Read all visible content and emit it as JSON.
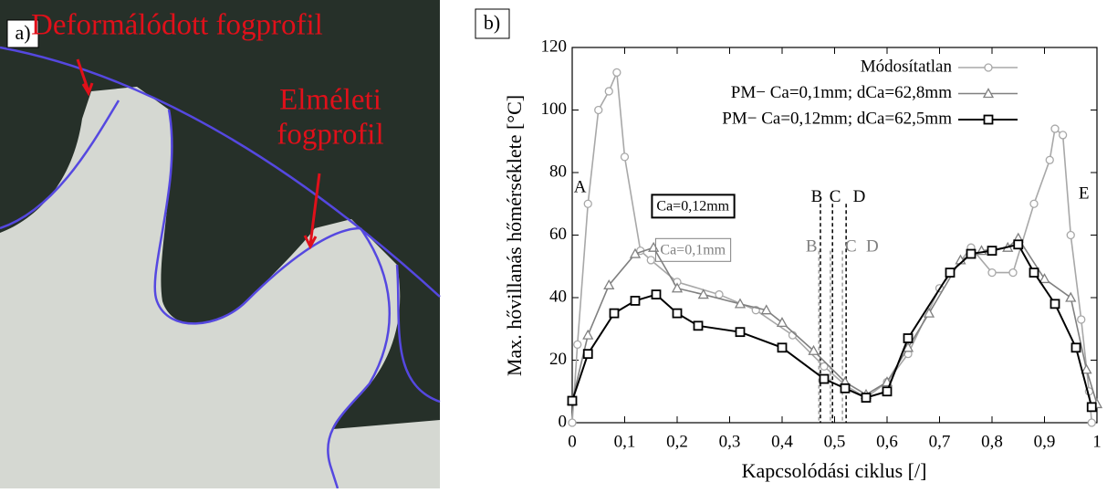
{
  "photo": {
    "panel_label": "a)",
    "deformed_label": "Deformálódott fogprofil",
    "theory_label": [
      "Elméleti",
      "fogprofil"
    ]
  },
  "chart_data": {
    "type": "line",
    "panel_label": "b)",
    "xlabel": "Kapcsolódási ciklus [/]",
    "ylabel": "Max. hővillanás hőmérséklete [°C]",
    "xlim": [
      0,
      1
    ],
    "ylim": [
      0,
      120
    ],
    "xticks": [
      0,
      {
        "value": 0.1,
        "label": "0,1"
      },
      {
        "value": 0.2,
        "label": "0,2"
      },
      {
        "value": 0.3,
        "label": "0,3"
      },
      {
        "value": 0.4,
        "label": "0,4"
      },
      {
        "value": 0.5,
        "label": "0,5"
      },
      {
        "value": 0.6,
        "label": "0,6"
      },
      {
        "value": 0.7,
        "label": "0,7"
      },
      {
        "value": 0.8,
        "label": "0,8"
      },
      {
        "value": 0.9,
        "label": "0,9"
      },
      1
    ],
    "yticks": [
      0,
      20,
      40,
      60,
      80,
      100,
      120
    ],
    "legend": "upper right",
    "series": [
      {
        "name": "Módosítatlan",
        "color": "#a8a8a8",
        "marker": "circle",
        "x": [
          0,
          0.01,
          0.03,
          0.05,
          0.07,
          0.085,
          0.1,
          0.13,
          0.15,
          0.2,
          0.28,
          0.35,
          0.42,
          0.48,
          0.52,
          0.56,
          0.6,
          0.64,
          0.7,
          0.76,
          0.8,
          0.84,
          0.88,
          0.91,
          0.92,
          0.935,
          0.95,
          0.97,
          0.985,
          0.99
        ],
        "values": [
          0,
          25,
          70,
          100,
          106,
          112,
          85,
          55,
          52,
          45,
          41,
          36,
          28,
          18,
          12,
          8,
          13,
          22,
          43,
          56,
          48,
          48,
          70,
          84,
          94,
          92,
          60,
          33,
          10,
          0
        ]
      },
      {
        "name": "PM− Ca=0,1mm; dCa=62,8mm",
        "color": "#808080",
        "marker": "triangle",
        "x": [
          0,
          0.03,
          0.07,
          0.12,
          0.155,
          0.2,
          0.25,
          0.32,
          0.37,
          0.4,
          0.46,
          0.52,
          0.56,
          0.6,
          0.64,
          0.68,
          0.74,
          0.78,
          0.83,
          0.85,
          0.9,
          0.95,
          0.98,
          1
        ],
        "values": [
          7,
          28,
          44,
          54,
          56,
          43,
          41,
          38,
          36,
          32,
          23,
          13,
          9,
          13,
          24,
          35,
          52,
          55,
          56,
          59,
          46,
          40,
          17,
          6
        ]
      },
      {
        "name": "PM− Ca=0,12mm; dCa=62,5mm",
        "color": "#000000",
        "marker": "square",
        "x": [
          0,
          0.03,
          0.08,
          0.12,
          0.16,
          0.2,
          0.24,
          0.32,
          0.4,
          0.48,
          0.52,
          0.56,
          0.6,
          0.64,
          0.72,
          0.76,
          0.8,
          0.85,
          0.88,
          0.92,
          0.96,
          0.99
        ],
        "values": [
          7,
          22,
          35,
          39,
          41,
          35,
          31,
          29,
          24,
          14,
          11,
          8,
          10,
          27,
          48,
          54,
          55,
          57,
          48,
          38,
          24,
          5
        ]
      }
    ],
    "vlines": [
      {
        "x": 0.473,
        "color": "#000000",
        "top": 70
      },
      {
        "x": 0.496,
        "color": "#000000",
        "top": 70
      },
      {
        "x": 0.522,
        "color": "#000000",
        "top": 70
      },
      {
        "x": 0.47,
        "color": "#a0a0a0",
        "top": 55
      },
      {
        "x": 0.492,
        "color": "#a0a0a0",
        "top": 55
      },
      {
        "x": 0.515,
        "color": "#a0a0a0",
        "top": 55
      }
    ],
    "annotations": [
      {
        "text": "A",
        "x": 0.003,
        "y": 75,
        "color": "#000000"
      },
      {
        "text": "E",
        "x": 0.965,
        "y": 73,
        "color": "#000000"
      },
      {
        "text": "B",
        "x": 0.455,
        "y": 72,
        "color": "#000000"
      },
      {
        "text": "C",
        "x": 0.49,
        "y": 72,
        "color": "#000000"
      },
      {
        "text": "D",
        "x": 0.535,
        "y": 72,
        "color": "#000000"
      },
      {
        "text": "B",
        "x": 0.445,
        "y": 56,
        "color": "#808080"
      },
      {
        "text": "C",
        "x": 0.52,
        "y": 56,
        "color": "#808080"
      },
      {
        "text": "D",
        "x": 0.56,
        "y": 56,
        "color": "#808080"
      },
      {
        "text": "Ca=0,12mm",
        "x": 0.23,
        "y": 69,
        "color": "#000000",
        "boxed": true
      },
      {
        "text": "Ca=0,1mm",
        "x": 0.23,
        "y": 55,
        "color": "#808080",
        "boxed": true
      }
    ]
  }
}
